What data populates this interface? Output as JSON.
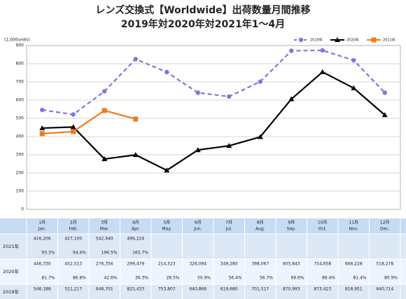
{
  "chart_data": {
    "type": "line",
    "title": [
      "レンズ交換式【Worldwide】出荷数量月間推移",
      "2019年対2020年対2021年1～4月"
    ],
    "y_unit_label": "(1,000units)",
    "ylim": [
      0,
      900
    ],
    "yticks": [
      0,
      100,
      200,
      300,
      400,
      500,
      600,
      700,
      800,
      900
    ],
    "grid": true,
    "legend": "top-right",
    "series": [
      {
        "name": "2019年",
        "color": "#7f78dc",
        "dashed": true,
        "marker": "circle",
        "values": [
          546.188,
          521.217,
          648.701,
          825.433,
          753.807,
          640.866,
          619.68,
          701.517,
          870.993,
          873.423,
          818.951,
          640.714
        ]
      },
      {
        "name": "2020年",
        "color": "#000000",
        "dashed": false,
        "marker": "triangle",
        "values": [
          446.33,
          452.513,
          276.356,
          299.479,
          214.523,
          326.094,
          349.28,
          398.067,
          605.843,
          754.658,
          666.228,
          518.278
        ]
      },
      {
        "name": "2021年",
        "color": "#f07a1c",
        "dashed": false,
        "marker": "square",
        "values": [
          416.206,
          427.1,
          542.94,
          496.224,
          null,
          null,
          null,
          null,
          null,
          null,
          null,
          null
        ]
      }
    ]
  },
  "table": {
    "columns": [
      [
        "1月",
        "Jan."
      ],
      [
        "2月",
        "Feb."
      ],
      [
        "3月",
        "Mar."
      ],
      [
        "4月",
        "Apr."
      ],
      [
        "5月",
        "May."
      ],
      [
        "6月",
        "Jun."
      ],
      [
        "7月",
        "Jul."
      ],
      [
        "8月",
        "Aug."
      ],
      [
        "9月",
        "Sep."
      ],
      [
        "10月",
        "Oct."
      ],
      [
        "11月",
        "Nov."
      ],
      [
        "12月",
        "Dec."
      ]
    ],
    "rows": [
      {
        "label": "2021年",
        "values": [
          "416,206",
          "427,100",
          "542,940",
          "496,224"
        ],
        "percent": [
          "93.3%",
          "94.4%",
          "196.5%",
          "165.7%"
        ]
      },
      {
        "label": "2020年",
        "values": [
          "446,330",
          "452,513",
          "276,356",
          "299,479",
          "214,523",
          "326,094",
          "349,280",
          "398,067",
          "605,843",
          "754,658",
          "666,228",
          "518,278"
        ],
        "percent": [
          "81.7%",
          "86.8%",
          "42.6%",
          "36.3%",
          "28.5%",
          "50.9%",
          "56.4%",
          "56.7%",
          "69.6%",
          "86.4%",
          "81.4%",
          "80.9%"
        ]
      },
      {
        "label": "2019年",
        "values": [
          "546,188",
          "521,217",
          "648,701",
          "825,433",
          "753,807",
          "640,866",
          "619,680",
          "701,517",
          "870,993",
          "873,423",
          "818,951",
          "640,714"
        ]
      }
    ]
  }
}
